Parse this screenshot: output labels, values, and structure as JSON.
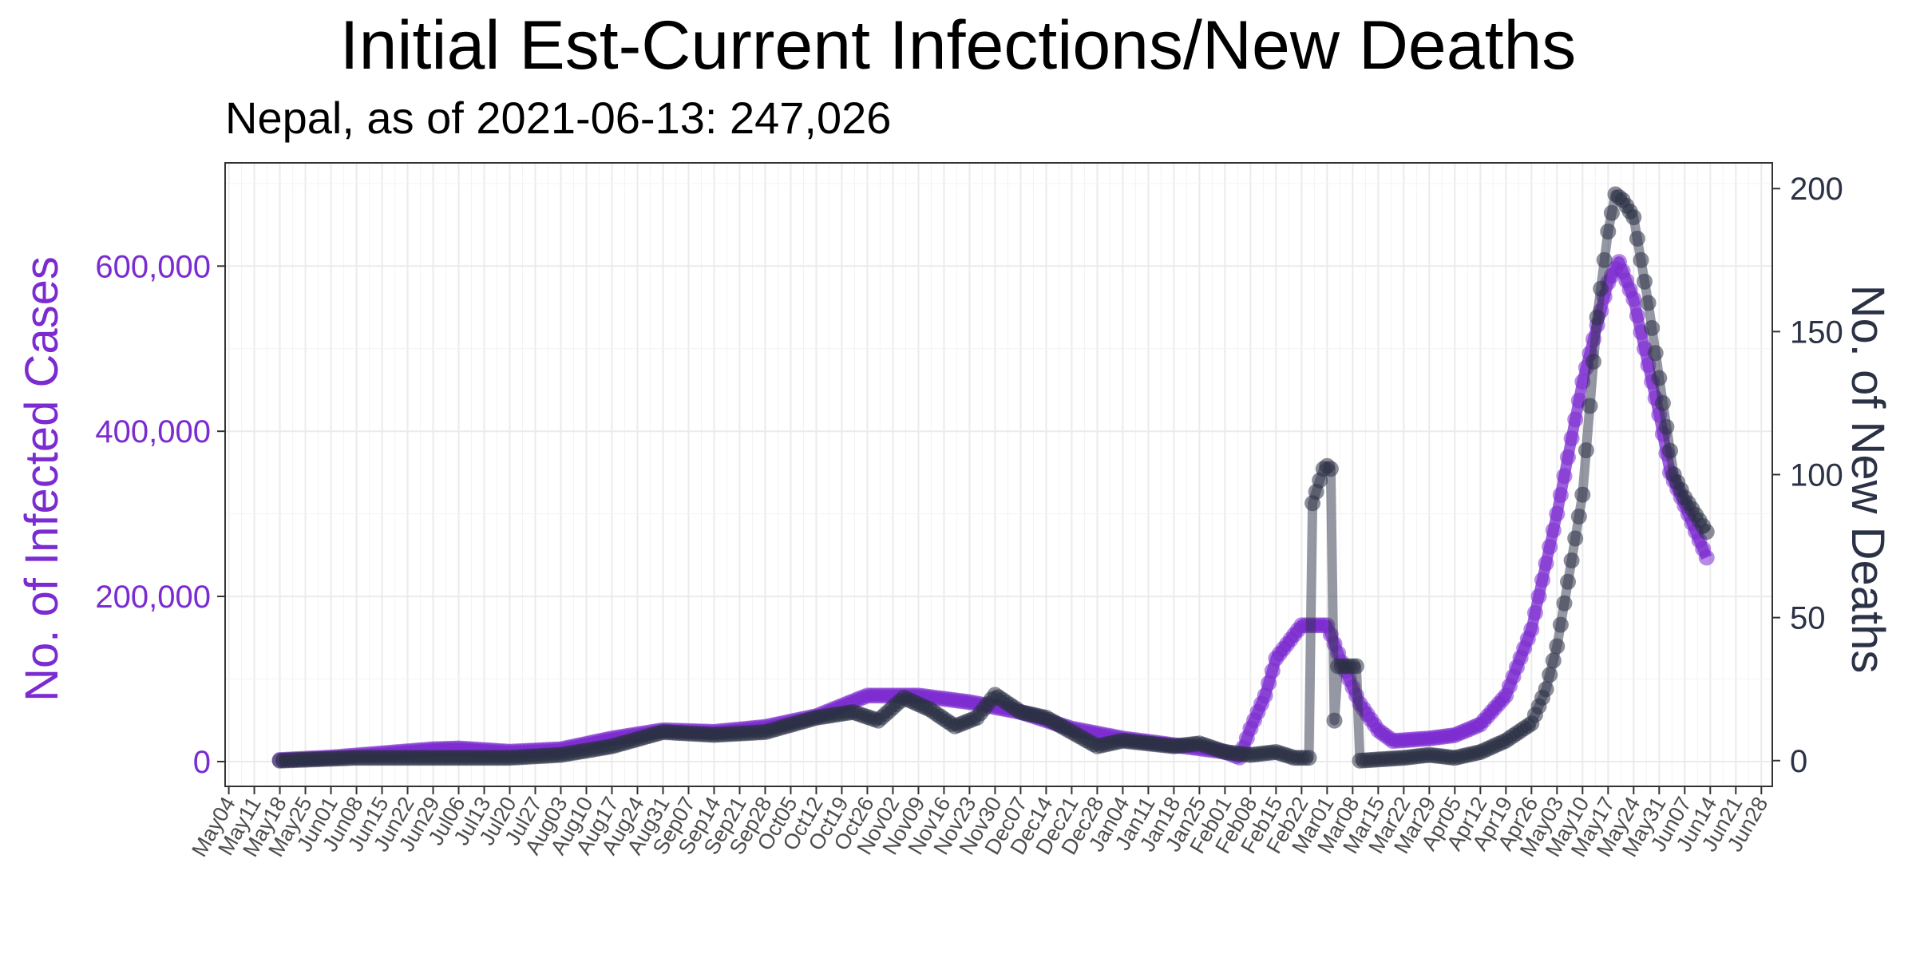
{
  "chart_data": {
    "type": "line",
    "title": "Initial Est-Current Infections/New Deaths",
    "subtitle": "Nepal, as of 2021-06-13:  247,026",
    "y_left_label": "No. of Infected Cases",
    "y_right_label": "No. of New Deaths",
    "y_left_ticks": [
      "0",
      "200,000",
      "400,000",
      "600,000"
    ],
    "y_left_tick_values": [
      0,
      200000,
      400000,
      600000
    ],
    "y_right_ticks": [
      "0",
      "50",
      "100",
      "150",
      "200"
    ],
    "y_right_tick_values": [
      0,
      50,
      100,
      150,
      200
    ],
    "y_left_range": [
      -30000,
      725000
    ],
    "y_right_range": [
      -9,
      209
    ],
    "x_range": [
      "2020-05-03",
      "2021-07-01"
    ],
    "x_ticks": [
      "May04",
      "May11",
      "May18",
      "May25",
      "Jun01",
      "Jun08",
      "Jun15",
      "Jun22",
      "Jun29",
      "Jul06",
      "Jul13",
      "Jul20",
      "Jul27",
      "Aug03",
      "Aug10",
      "Aug17",
      "Aug24",
      "Aug31",
      "Sep07",
      "Sep14",
      "Sep21",
      "Sep28",
      "Oct05",
      "Oct12",
      "Oct19",
      "Oct26",
      "Nov02",
      "Nov09",
      "Nov16",
      "Nov23",
      "Nov30",
      "Dec07",
      "Dec14",
      "Dec21",
      "Dec28",
      "Jan04",
      "Jan11",
      "Jan18",
      "Jan25",
      "Feb01",
      "Feb08",
      "Feb15",
      "Feb22",
      "Mar01",
      "Mar08",
      "Mar15",
      "Mar22",
      "Mar29",
      "Apr05",
      "Apr12",
      "Apr19",
      "Apr26",
      "May03",
      "May10",
      "May17",
      "May24",
      "May31",
      "Jun07",
      "Jun14",
      "Jun21",
      "Jun28"
    ],
    "x_tick_dates": [
      "2020-05-04",
      "2020-05-11",
      "2020-05-18",
      "2020-05-25",
      "2020-06-01",
      "2020-06-08",
      "2020-06-15",
      "2020-06-22",
      "2020-06-29",
      "2020-07-06",
      "2020-07-13",
      "2020-07-20",
      "2020-07-27",
      "2020-08-03",
      "2020-08-10",
      "2020-08-17",
      "2020-08-24",
      "2020-08-31",
      "2020-09-07",
      "2020-09-14",
      "2020-09-21",
      "2020-09-28",
      "2020-10-05",
      "2020-10-12",
      "2020-10-19",
      "2020-10-26",
      "2020-11-02",
      "2020-11-09",
      "2020-11-16",
      "2020-11-23",
      "2020-11-30",
      "2020-12-07",
      "2020-12-14",
      "2020-12-21",
      "2020-12-28",
      "2021-01-04",
      "2021-01-11",
      "2021-01-18",
      "2021-01-25",
      "2021-02-01",
      "2021-02-08",
      "2021-02-15",
      "2021-02-22",
      "2021-03-01",
      "2021-03-08",
      "2021-03-15",
      "2021-03-22",
      "2021-03-29",
      "2021-04-05",
      "2021-04-12",
      "2021-04-19",
      "2021-04-26",
      "2021-05-03",
      "2021-05-10",
      "2021-05-17",
      "2021-05-24",
      "2021-05-31",
      "2021-06-07",
      "2021-06-14",
      "2021-06-21",
      "2021-06-28"
    ],
    "grid": true,
    "series": [
      {
        "name": "",
        "axis": "left",
        "color": "#7B2BD0",
        "points": [
          [
            "2020-05-18",
            2000
          ],
          [
            "2020-06-01",
            5000
          ],
          [
            "2020-06-15",
            10000
          ],
          [
            "2020-06-29",
            15000
          ],
          [
            "2020-07-06",
            16000
          ],
          [
            "2020-07-20",
            12000
          ],
          [
            "2020-08-03",
            15000
          ],
          [
            "2020-08-17",
            28000
          ],
          [
            "2020-08-31",
            38000
          ],
          [
            "2020-09-14",
            36000
          ],
          [
            "2020-09-28",
            42000
          ],
          [
            "2020-10-12",
            55000
          ],
          [
            "2020-10-26",
            80000
          ],
          [
            "2020-11-09",
            80000
          ],
          [
            "2020-11-23",
            72000
          ],
          [
            "2020-12-07",
            60000
          ],
          [
            "2020-12-21",
            40000
          ],
          [
            "2021-01-04",
            28000
          ],
          [
            "2021-01-18",
            20000
          ],
          [
            "2021-02-01",
            12000
          ],
          [
            "2021-02-05",
            5000
          ],
          [
            "2021-02-08",
            40000
          ],
          [
            "2021-02-12",
            80000
          ],
          [
            "2021-02-15",
            125000
          ],
          [
            "2021-02-22",
            165000
          ],
          [
            "2021-03-01",
            165000
          ],
          [
            "2021-03-05",
            120000
          ],
          [
            "2021-03-10",
            70000
          ],
          [
            "2021-03-15",
            38000
          ],
          [
            "2021-03-19",
            25000
          ],
          [
            "2021-03-29",
            28000
          ],
          [
            "2021-04-05",
            32000
          ],
          [
            "2021-04-12",
            45000
          ],
          [
            "2021-04-19",
            80000
          ],
          [
            "2021-04-26",
            160000
          ],
          [
            "2021-05-03",
            300000
          ],
          [
            "2021-05-10",
            460000
          ],
          [
            "2021-05-17",
            580000
          ],
          [
            "2021-05-20",
            605000
          ],
          [
            "2021-05-24",
            560000
          ],
          [
            "2021-05-31",
            420000
          ],
          [
            "2021-06-03",
            350000
          ],
          [
            "2021-06-07",
            310000
          ],
          [
            "2021-06-13",
            247026
          ]
        ]
      },
      {
        "name": "",
        "axis": "right",
        "color": "#2B3245",
        "points": [
          [
            "2020-05-18",
            0
          ],
          [
            "2020-06-08",
            1
          ],
          [
            "2020-06-29",
            1
          ],
          [
            "2020-07-20",
            1
          ],
          [
            "2020-08-03",
            2
          ],
          [
            "2020-08-17",
            5
          ],
          [
            "2020-08-31",
            10
          ],
          [
            "2020-09-14",
            9
          ],
          [
            "2020-09-28",
            10
          ],
          [
            "2020-10-12",
            15
          ],
          [
            "2020-10-22",
            17
          ],
          [
            "2020-10-29",
            14
          ],
          [
            "2020-11-05",
            22
          ],
          [
            "2020-11-12",
            18
          ],
          [
            "2020-11-19",
            12
          ],
          [
            "2020-11-25",
            15
          ],
          [
            "2020-11-30",
            23
          ],
          [
            "2020-12-07",
            17
          ],
          [
            "2020-12-14",
            15
          ],
          [
            "2020-12-21",
            10
          ],
          [
            "2020-12-28",
            5
          ],
          [
            "2021-01-04",
            7
          ],
          [
            "2021-01-18",
            5
          ],
          [
            "2021-01-25",
            6
          ],
          [
            "2021-02-01",
            3
          ],
          [
            "2021-02-08",
            2
          ],
          [
            "2021-02-15",
            3
          ],
          [
            "2021-02-20",
            1
          ],
          [
            "2021-02-24",
            1
          ],
          [
            "2021-02-25",
            90
          ],
          [
            "2021-02-28",
            102
          ],
          [
            "2021-03-01",
            103
          ],
          [
            "2021-03-02",
            102
          ],
          [
            "2021-03-03",
            14
          ],
          [
            "2021-03-04",
            33
          ],
          [
            "2021-03-07",
            33
          ],
          [
            "2021-03-09",
            33
          ],
          [
            "2021-03-10",
            0
          ],
          [
            "2021-03-22",
            1
          ],
          [
            "2021-03-29",
            2
          ],
          [
            "2021-04-05",
            1
          ],
          [
            "2021-04-12",
            3
          ],
          [
            "2021-04-19",
            7
          ],
          [
            "2021-04-26",
            13
          ],
          [
            "2021-04-30",
            25
          ],
          [
            "2021-05-03",
            40
          ],
          [
            "2021-05-07",
            70
          ],
          [
            "2021-05-10",
            93
          ],
          [
            "2021-05-14",
            155
          ],
          [
            "2021-05-17",
            185
          ],
          [
            "2021-05-19",
            198
          ],
          [
            "2021-05-21",
            196
          ],
          [
            "2021-05-24",
            190
          ],
          [
            "2021-05-28",
            160
          ],
          [
            "2021-06-01",
            125
          ],
          [
            "2021-06-04",
            100
          ],
          [
            "2021-06-07",
            92
          ],
          [
            "2021-06-13",
            80
          ]
        ]
      }
    ]
  }
}
